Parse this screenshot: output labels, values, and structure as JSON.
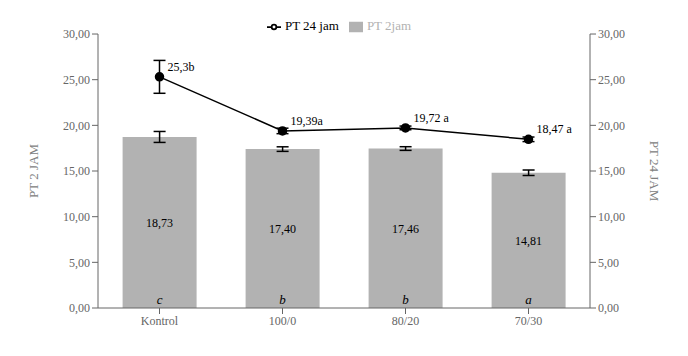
{
  "chart_data": {
    "type": "bar",
    "categories": [
      "Kontrol",
      "100/0",
      "80/20",
      "70/30"
    ],
    "series": [
      {
        "name": "PT 2jam",
        "type": "bar",
        "color": "#b2b2b2",
        "values": [
          18.73,
          17.4,
          17.46,
          14.81
        ],
        "errors": [
          0.6,
          0.25,
          0.2,
          0.3
        ],
        "value_labels": [
          "18,73",
          "17,40",
          "17,46",
          "14,81"
        ],
        "significance_labels": [
          "c",
          "b",
          "b",
          "a"
        ]
      },
      {
        "name": "PT 24 jam",
        "type": "line",
        "axis": "y2",
        "color": "#000000",
        "marker": "circle",
        "values": [
          25.31,
          19.39,
          19.72,
          18.47
        ],
        "errors": [
          1.8,
          0.3,
          0.2,
          0.25
        ],
        "value_labels": [
          "25,3b",
          "19,39a",
          "19,72 a",
          "18,47 a"
        ]
      }
    ],
    "ylabel": "PT 2 JAM",
    "y2label": "PT 24 JAM",
    "ylim": [
      0,
      30
    ],
    "yticks": [
      {
        "value": 0,
        "label": "0,00"
      },
      {
        "value": 5,
        "label": "5,00"
      },
      {
        "value": 10,
        "label": "10,00"
      },
      {
        "value": 15,
        "label": "15,00"
      },
      {
        "value": 20,
        "label": "20,00"
      },
      {
        "value": 25,
        "label": "25,00"
      },
      {
        "value": 30,
        "label": "30,00"
      }
    ],
    "y2lim": [
      0,
      30
    ],
    "y2ticks": [
      {
        "value": 0,
        "label": "0,00"
      },
      {
        "value": 5,
        "label": "5,00"
      },
      {
        "value": 10,
        "label": "10,00"
      },
      {
        "value": 15,
        "label": "15,00"
      },
      {
        "value": 20,
        "label": "20,00"
      },
      {
        "value": 25,
        "label": "25,00"
      },
      {
        "value": 30,
        "label": "30,00"
      }
    ],
    "data_labels": true,
    "legend": "top",
    "grid": false
  }
}
